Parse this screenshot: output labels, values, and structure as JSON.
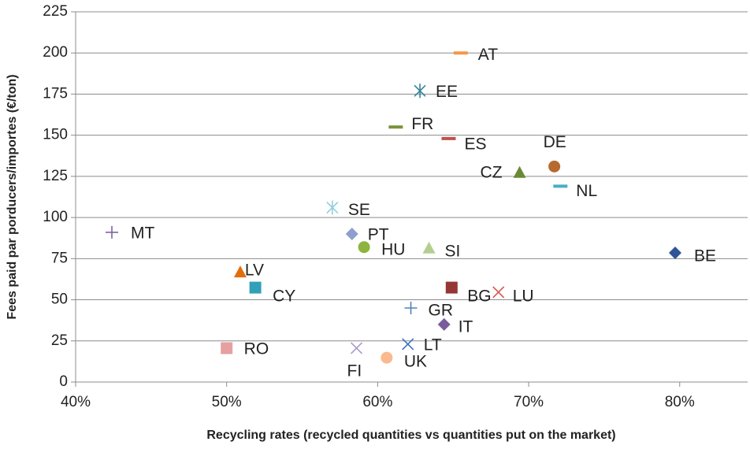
{
  "chart_data": {
    "type": "scatter",
    "x_label": "Recycling rates (recycled quantities vs quantities put on the market)",
    "y_label": "Fees paid par porducers/importes (€/ton)",
    "xlim": [
      40,
      84.5
    ],
    "ylim": [
      0,
      225
    ],
    "xticks": [
      {
        "value": 40,
        "label": "40%"
      },
      {
        "value": 50,
        "label": "50%"
      },
      {
        "value": 60,
        "label": "60%"
      },
      {
        "value": 70,
        "label": "70%"
      },
      {
        "value": 80,
        "label": "80%"
      }
    ],
    "yticks": [
      0,
      25,
      50,
      75,
      100,
      125,
      150,
      175,
      200,
      225
    ],
    "grid": true,
    "series": [
      {
        "name": "AT",
        "color": "#f79646",
        "marker": "dash",
        "x": [
          65.5
        ],
        "values": [
          200
        ]
      },
      {
        "name": "EE",
        "color": "#31849b",
        "marker": "asterisk",
        "x": [
          62.8
        ],
        "values": [
          177
        ]
      },
      {
        "name": "FR",
        "color": "#77933c",
        "marker": "dash",
        "x": [
          61.2
        ],
        "values": [
          155
        ]
      },
      {
        "name": "ES",
        "color": "#c0504d",
        "marker": "dash",
        "x": [
          64.7
        ],
        "values": [
          148
        ]
      },
      {
        "name": "DE",
        "color": "#b7692f",
        "marker": "circle",
        "x": [
          71.7
        ],
        "values": [
          131
        ]
      },
      {
        "name": "CZ",
        "color": "#6a8a35",
        "marker": "triangle",
        "x": [
          69.4
        ],
        "values": [
          127
        ]
      },
      {
        "name": "NL",
        "color": "#4bacc6",
        "marker": "dash",
        "x": [
          72.1
        ],
        "values": [
          119
        ]
      },
      {
        "name": "SE",
        "color": "#93cddd",
        "marker": "asterisk",
        "x": [
          57.0
        ],
        "values": [
          106
        ]
      },
      {
        "name": "MT",
        "color": "#8064a2",
        "marker": "plus",
        "x": [
          42.4
        ],
        "values": [
          91
        ]
      },
      {
        "name": "PT",
        "color": "#8da0cb",
        "marker": "diamond",
        "x": [
          58.3
        ],
        "values": [
          90
        ]
      },
      {
        "name": "HU",
        "color": "#8cb43f",
        "marker": "circle",
        "x": [
          59.1
        ],
        "values": [
          82
        ]
      },
      {
        "name": "SI",
        "color": "#b3cf8f",
        "marker": "triangle",
        "x": [
          63.4
        ],
        "values": [
          81
        ]
      },
      {
        "name": "BE",
        "color": "#2f5597",
        "marker": "diamond",
        "x": [
          79.7
        ],
        "values": [
          78.5
        ]
      },
      {
        "name": "LV",
        "color": "#e46c0a",
        "marker": "triangle",
        "x": [
          50.9
        ],
        "values": [
          66.5
        ]
      },
      {
        "name": "CY",
        "color": "#31a0b8",
        "marker": "square",
        "x": [
          51.9
        ],
        "values": [
          57.4
        ]
      },
      {
        "name": "BG",
        "color": "#953735",
        "marker": "square",
        "x": [
          64.9
        ],
        "values": [
          57.4
        ]
      },
      {
        "name": "LU",
        "color": "#d9534f",
        "marker": "x",
        "x": [
          68.0
        ],
        "values": [
          54.6
        ]
      },
      {
        "name": "GR",
        "color": "#4f81bd",
        "marker": "plus",
        "x": [
          62.2
        ],
        "values": [
          45
        ]
      },
      {
        "name": "IT",
        "color": "#7a5c9e",
        "marker": "diamond",
        "x": [
          64.4
        ],
        "values": [
          35
        ]
      },
      {
        "name": "LT",
        "color": "#3b74c0",
        "marker": "x",
        "x": [
          62.0
        ],
        "values": [
          23
        ]
      },
      {
        "name": "RO",
        "color": "#e6a0a0",
        "marker": "square",
        "x": [
          50.0
        ],
        "values": [
          20.6
        ]
      },
      {
        "name": "FI",
        "color": "#a99bc9",
        "marker": "x",
        "x": [
          58.6
        ],
        "values": [
          20.6
        ]
      },
      {
        "name": "UK",
        "color": "#fbb98f",
        "marker": "circle",
        "x": [
          60.6
        ],
        "values": [
          14.8
        ]
      }
    ]
  }
}
